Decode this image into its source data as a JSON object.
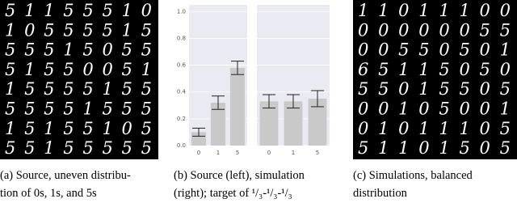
{
  "grids": [
    {
      "rows": [
        "51155510",
        "10555515",
        "55515055",
        "51550051",
        "15555155",
        "55551555",
        "15155105",
        "55155555"
      ]
    },
    {
      "rows": [
        "11011100",
        "00000055",
        "00550501",
        "65115050",
        "55015505",
        "00105001",
        "01011105",
        "51101505"
      ]
    }
  ],
  "chart_data": [
    {
      "type": "bar",
      "categories": [
        "0",
        "1",
        "5"
      ],
      "values": [
        0.1,
        0.32,
        0.58
      ],
      "errors": [
        0.03,
        0.05,
        0.05
      ],
      "color": "#c9c9c9",
      "ylim": [
        0,
        1.05
      ],
      "yticks": [
        {
          "value": 0,
          "label": "0.0"
        },
        {
          "value": 0.2,
          "label": "0.2"
        },
        {
          "value": 0.4,
          "label": "0.4"
        },
        {
          "value": 0.6,
          "label": "0.6"
        },
        {
          "value": 0.8,
          "label": "0.8"
        },
        {
          "value": 1,
          "label": "1.0"
        }
      ],
      "grid": true
    },
    {
      "type": "bar",
      "categories": [
        "0",
        "1",
        "5"
      ],
      "values": [
        0.33,
        0.33,
        0.35
      ],
      "errors": [
        0.05,
        0.05,
        0.06
      ],
      "color": "#c9c9c9",
      "ylim": [
        0,
        1.05
      ],
      "yticks": [
        0,
        0.2,
        0.4,
        0.6,
        0.8,
        1
      ],
      "grid": true
    }
  ],
  "captions": [
    [
      "(a) Source, uneven distribu-",
      "tion of 0s, 1s, and 5s"
    ],
    [
      "(b) Source (left), simulation",
      "(right); target of ¹/₃-¹/₃-¹/₃"
    ],
    [
      "(c) Simulations, balanced",
      "distribution"
    ]
  ]
}
